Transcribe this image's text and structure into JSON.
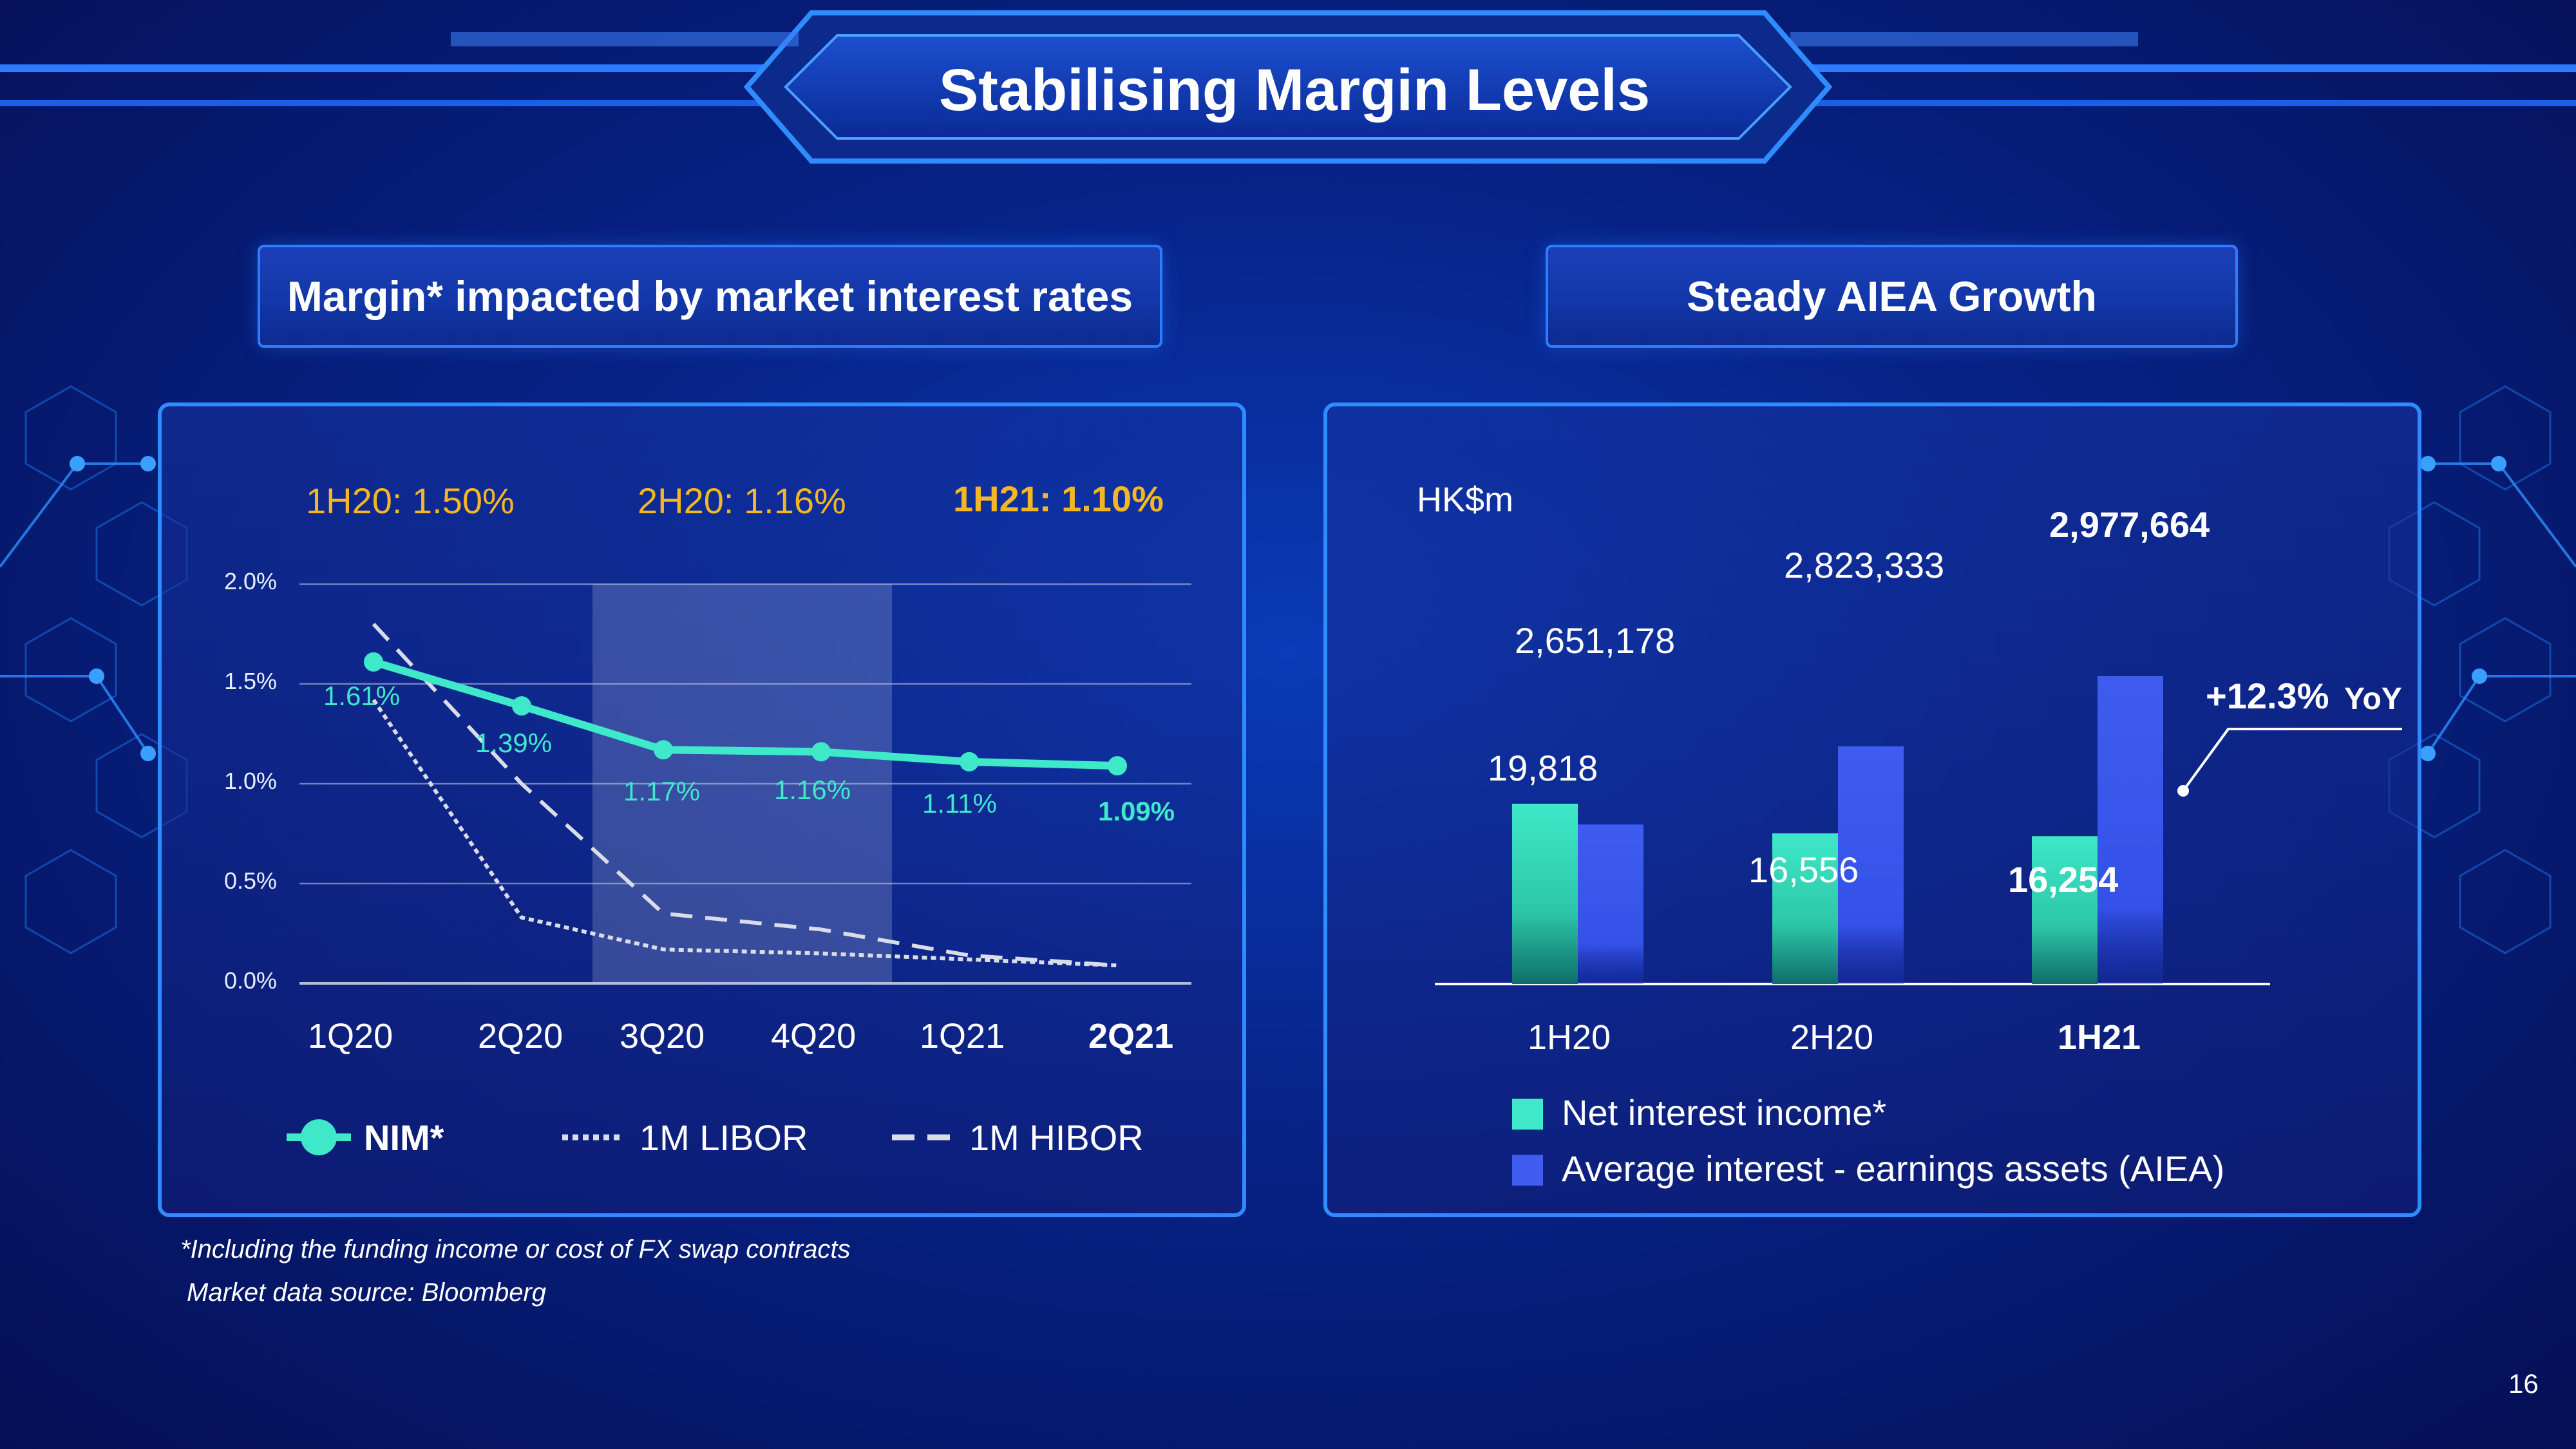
{
  "slide": {
    "title": "Stabilising Margin Levels",
    "page_number": "16",
    "footnote_1": "*Including the funding income or cost of FX swap contracts",
    "footnote_2": "Market data source: Bloomberg"
  },
  "left_panel": {
    "header": "Margin* impacted by market interest rates",
    "periods": [
      {
        "label": "1H20: 1.50%",
        "bold": false
      },
      {
        "label": "2H20: 1.16%",
        "bold": false
      },
      {
        "label": "1H21: 1.10%",
        "bold": true
      }
    ],
    "legend": {
      "nim": "NIM*",
      "libor": "1M LIBOR",
      "hibor": "1M HIBOR"
    }
  },
  "right_panel": {
    "header": "Steady AIEA Growth",
    "unit": "HK$m",
    "growth_label": "+12.3%",
    "growth_suffix": "YoY",
    "legend": {
      "nii": "Net interest income*",
      "aiea": "Average interest - earnings assets (AIEA)"
    }
  },
  "colors": {
    "nim": "#3ee8c8",
    "libor": "#d9dde8",
    "hibor": "#d9dde8",
    "nii": "#3ee8c8",
    "aiea": "#3f5cf0",
    "period": "#f5b623",
    "panel_border": "#2f8cff"
  },
  "chart_data": [
    {
      "type": "line",
      "x": [
        "1Q20",
        "2Q20",
        "3Q20",
        "4Q20",
        "1Q21",
        "2Q21"
      ],
      "y_ticks": [
        "0.0%",
        "0.5%",
        "1.0%",
        "1.5%",
        "2.0%"
      ],
      "ylim": [
        0,
        2.0
      ],
      "grid": true,
      "legend_position": "bottom",
      "series": [
        {
          "name": "NIM*",
          "values": [
            1.61,
            1.39,
            1.17,
            1.16,
            1.11,
            1.09
          ],
          "labels": [
            "1.61%",
            "1.39%",
            "1.17%",
            "1.16%",
            "1.11%",
            "1.09%"
          ]
        },
        {
          "name": "1M LIBOR",
          "values": [
            1.42,
            0.33,
            0.17,
            0.15,
            0.12,
            0.09
          ]
        },
        {
          "name": "1M HIBOR",
          "values": [
            1.8,
            1.0,
            0.35,
            0.27,
            0.14,
            0.09
          ]
        }
      ],
      "highlight_band": [
        "3Q20",
        "4Q20"
      ]
    },
    {
      "type": "bar",
      "categories": [
        "1H20",
        "2H20",
        "1H21"
      ],
      "series": [
        {
          "name": "Net interest income*",
          "values": [
            19818,
            16556,
            16254
          ],
          "labels": [
            "19,818",
            "16,556",
            "16,254"
          ]
        },
        {
          "name": "Average interest - earnings assets (AIEA)",
          "values": [
            2651178,
            2823333,
            2977664
          ],
          "labels": [
            "2,651,178",
            "2,823,333",
            "2,977,664"
          ]
        }
      ],
      "legend_position": "bottom-left"
    }
  ]
}
